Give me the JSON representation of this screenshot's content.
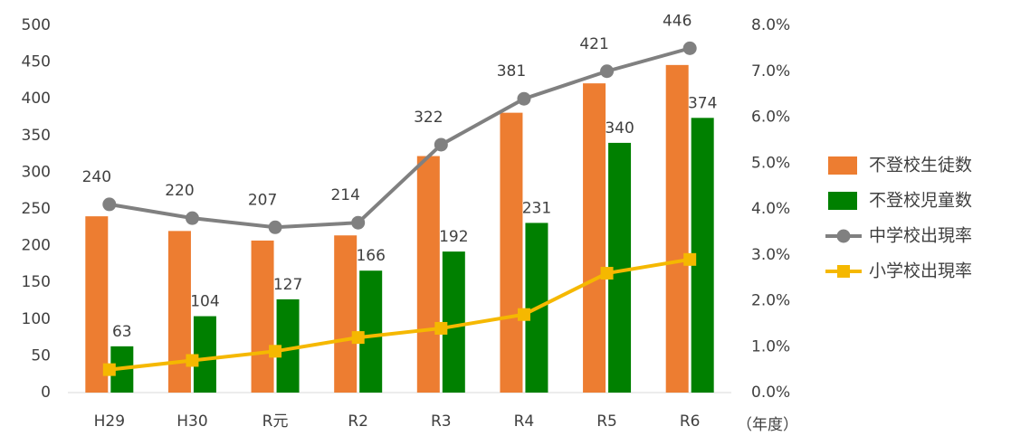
{
  "chart_data": {
    "type": "bar",
    "categories": [
      "H29",
      "H30",
      "R元",
      "R2",
      "R3",
      "R4",
      "R5",
      "R6"
    ],
    "x_unit_label": "（年度）",
    "series": [
      {
        "name": "不登校生徒数",
        "color": "#ed7d31",
        "axis": "y",
        "values": [
          240,
          220,
          207,
          214,
          322,
          381,
          421,
          446
        ]
      },
      {
        "name": "不登校児童数",
        "color": "#008000",
        "axis": "y",
        "values": [
          63,
          104,
          127,
          166,
          192,
          231,
          340,
          374
        ]
      },
      {
        "name": "中学校出現率",
        "color": "#808080",
        "axis": "y2",
        "type": "line",
        "marker": "circle",
        "values": [
          4.1,
          3.8,
          3.6,
          3.7,
          5.4,
          6.4,
          7.0,
          7.5
        ]
      },
      {
        "name": "小学校出現率",
        "color": "#f5b800",
        "axis": "y2",
        "type": "line",
        "marker": "square",
        "values": [
          0.5,
          0.7,
          0.9,
          1.2,
          1.4,
          1.7,
          2.6,
          2.9
        ]
      }
    ],
    "ylim": [
      0,
      500
    ],
    "yticks": [
      0,
      50,
      100,
      150,
      200,
      250,
      300,
      350,
      400,
      450,
      500
    ],
    "y2lim": [
      0,
      8
    ],
    "y2ticks": [
      {
        "value": 0,
        "label": "0.0%"
      },
      {
        "value": 1,
        "label": "1.0%"
      },
      {
        "value": 2,
        "label": "2.0%"
      },
      {
        "value": 3,
        "label": "3.0%"
      },
      {
        "value": 4,
        "label": "4.0%"
      },
      {
        "value": 5,
        "label": "5.0%"
      },
      {
        "value": 6,
        "label": "6.0%"
      },
      {
        "value": 7,
        "label": "7.0%"
      },
      {
        "value": 8,
        "label": "8.0%"
      }
    ],
    "grid": false,
    "legend": "right"
  }
}
